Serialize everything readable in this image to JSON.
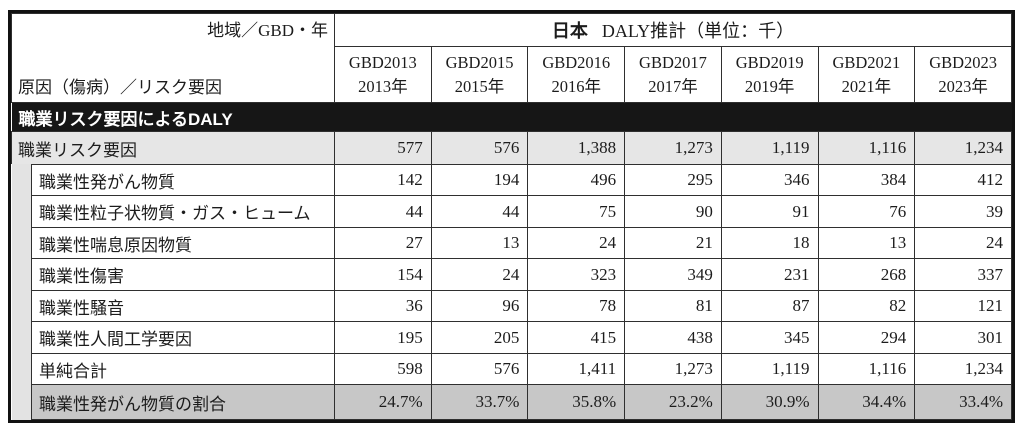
{
  "table": {
    "corner": {
      "top": "地域／GBD・年",
      "bottom": "原因（傷病）／リスク要因"
    },
    "region_title": {
      "bold": "日本",
      "rest": "DALY推計（単位：千）"
    },
    "columns": [
      {
        "gbd": "GBD2013",
        "year": "2013年"
      },
      {
        "gbd": "GBD2015",
        "year": "2015年"
      },
      {
        "gbd": "GBD2016",
        "year": "2016年"
      },
      {
        "gbd": "GBD2017",
        "year": "2017年"
      },
      {
        "gbd": "GBD2019",
        "year": "2019年"
      },
      {
        "gbd": "GBD2021",
        "year": "2021年"
      },
      {
        "gbd": "GBD2023",
        "year": "2023年"
      }
    ],
    "section_title": "職業リスク要因によるDALY",
    "rows": [
      {
        "label": "職業リスク要因",
        "indent": false,
        "variant": "summary",
        "values": [
          "577",
          "576",
          "1,388",
          "1,273",
          "1,119",
          "1,116",
          "1,234"
        ]
      },
      {
        "label": "職業性発がん物質",
        "indent": true,
        "variant": "",
        "values": [
          "142",
          "194",
          "496",
          "295",
          "346",
          "384",
          "412"
        ]
      },
      {
        "label": "職業性粒子状物質・ガス・ヒューム",
        "indent": true,
        "variant": "",
        "values": [
          "44",
          "44",
          "75",
          "90",
          "91",
          "76",
          "39"
        ]
      },
      {
        "label": "職業性喘息原因物質",
        "indent": true,
        "variant": "",
        "values": [
          "27",
          "13",
          "24",
          "21",
          "18",
          "13",
          "24"
        ]
      },
      {
        "label": "職業性傷害",
        "indent": true,
        "variant": "",
        "values": [
          "154",
          "24",
          "323",
          "349",
          "231",
          "268",
          "337"
        ]
      },
      {
        "label": "職業性騒音",
        "indent": true,
        "variant": "",
        "values": [
          "36",
          "96",
          "78",
          "81",
          "87",
          "82",
          "121"
        ]
      },
      {
        "label": "職業性人間工学要因",
        "indent": true,
        "variant": "",
        "values": [
          "195",
          "205",
          "415",
          "438",
          "345",
          "294",
          "301"
        ]
      },
      {
        "label": "単純合計",
        "indent": true,
        "variant": "",
        "values": [
          "598",
          "576",
          "1,411",
          "1,273",
          "1,119",
          "1,116",
          "1,234"
        ]
      },
      {
        "label": "職業性発がん物質の割合",
        "indent": true,
        "variant": "percent",
        "values": [
          "24.7%",
          "33.7%",
          "35.8%",
          "23.2%",
          "30.9%",
          "34.4%",
          "33.4%"
        ]
      }
    ]
  },
  "colors": {
    "band_bg": "#161616",
    "band_text": "#ffffff",
    "summary_row_bg": "#e6e6e6",
    "indent_strip_bg": "#e3e3e3",
    "percent_row_bg": "#c7c7c7",
    "border": "#2f2f2f",
    "outer_border": "#111111"
  }
}
